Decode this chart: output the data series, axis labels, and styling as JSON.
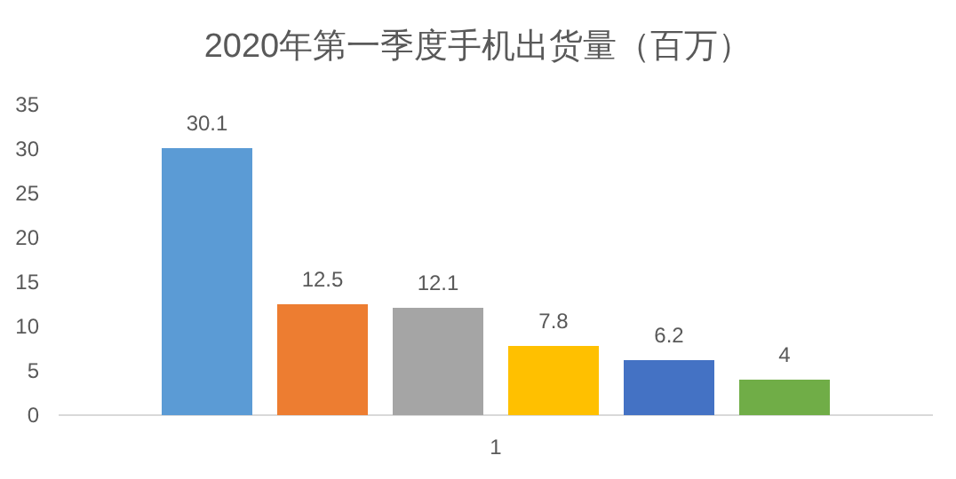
{
  "chart_data": {
    "type": "bar",
    "title": "2020年第一季度手机出货量（百万）",
    "categories": [
      "1"
    ],
    "series": [
      {
        "color": "#5b9bd5",
        "values": [
          30.1
        ]
      },
      {
        "color": "#ed7d31",
        "values": [
          12.5
        ]
      },
      {
        "color": "#a5a5a5",
        "values": [
          12.1
        ]
      },
      {
        "color": "#ffc000",
        "values": [
          7.8
        ]
      },
      {
        "color": "#4472c4",
        "values": [
          6.2
        ]
      },
      {
        "color": "#70ad47",
        "values": [
          4
        ]
      }
    ],
    "ylim": [
      0,
      35
    ],
    "yticks": [
      0,
      5,
      10,
      15,
      20,
      25,
      30,
      35
    ],
    "data_labels": true,
    "grid": false
  }
}
